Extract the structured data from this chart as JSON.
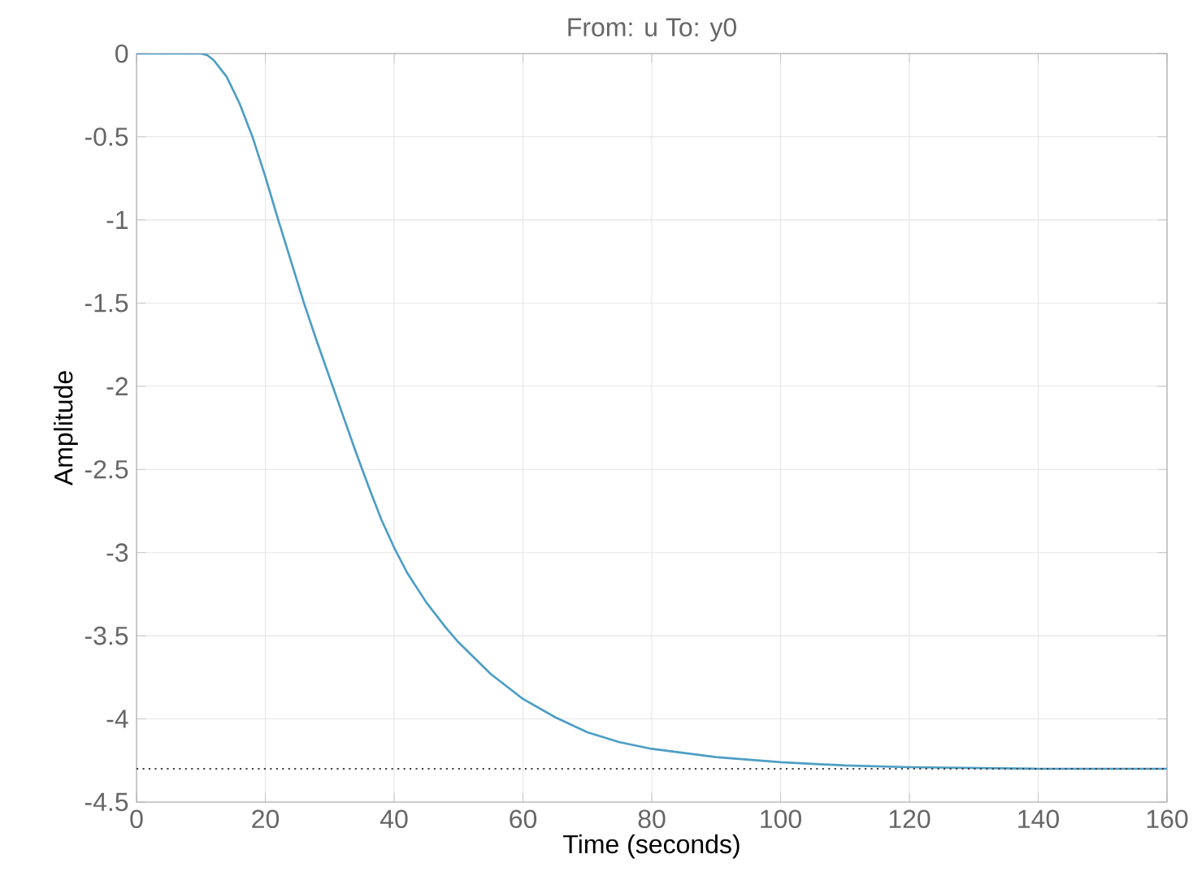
{
  "chart_data": {
    "type": "line",
    "title": "From: u  To: y0",
    "xlabel": "Time (seconds)",
    "ylabel": "Amplitude",
    "x": [
      0,
      5,
      10,
      11,
      12,
      14,
      16,
      18,
      20,
      22,
      24,
      26,
      28,
      30,
      32,
      34,
      36,
      38,
      40,
      42,
      45,
      48,
      50,
      55,
      60,
      65,
      70,
      75,
      80,
      90,
      100,
      110,
      120,
      140,
      160
    ],
    "series": [
      {
        "color": "#4d9ec4",
        "values": [
          0,
          0,
          0,
          -0.01,
          -0.04,
          -0.14,
          -0.3,
          -0.5,
          -0.74,
          -1.0,
          -1.25,
          -1.5,
          -1.73,
          -1.95,
          -2.17,
          -2.39,
          -2.6,
          -2.8,
          -2.97,
          -3.12,
          -3.3,
          -3.45,
          -3.54,
          -3.73,
          -3.88,
          -3.99,
          -4.08,
          -4.14,
          -4.18,
          -4.23,
          -4.26,
          -4.28,
          -4.29,
          -4.3,
          -4.3
        ]
      }
    ],
    "xlim": [
      0,
      160
    ],
    "ylim": [
      -4.5,
      0
    ],
    "xticks": [
      0,
      20,
      40,
      60,
      80,
      100,
      120,
      140,
      160
    ],
    "yticks": [
      -4.5,
      -4,
      -3.5,
      -3,
      -2.5,
      -2,
      -1.5,
      -1,
      -0.5,
      0
    ],
    "ref_lines": [
      {
        "axis": "y",
        "value": -4.3,
        "color": "#404040",
        "line_style": "dotted"
      }
    ],
    "grid": true,
    "marker": "none",
    "line_style": "solid"
  }
}
